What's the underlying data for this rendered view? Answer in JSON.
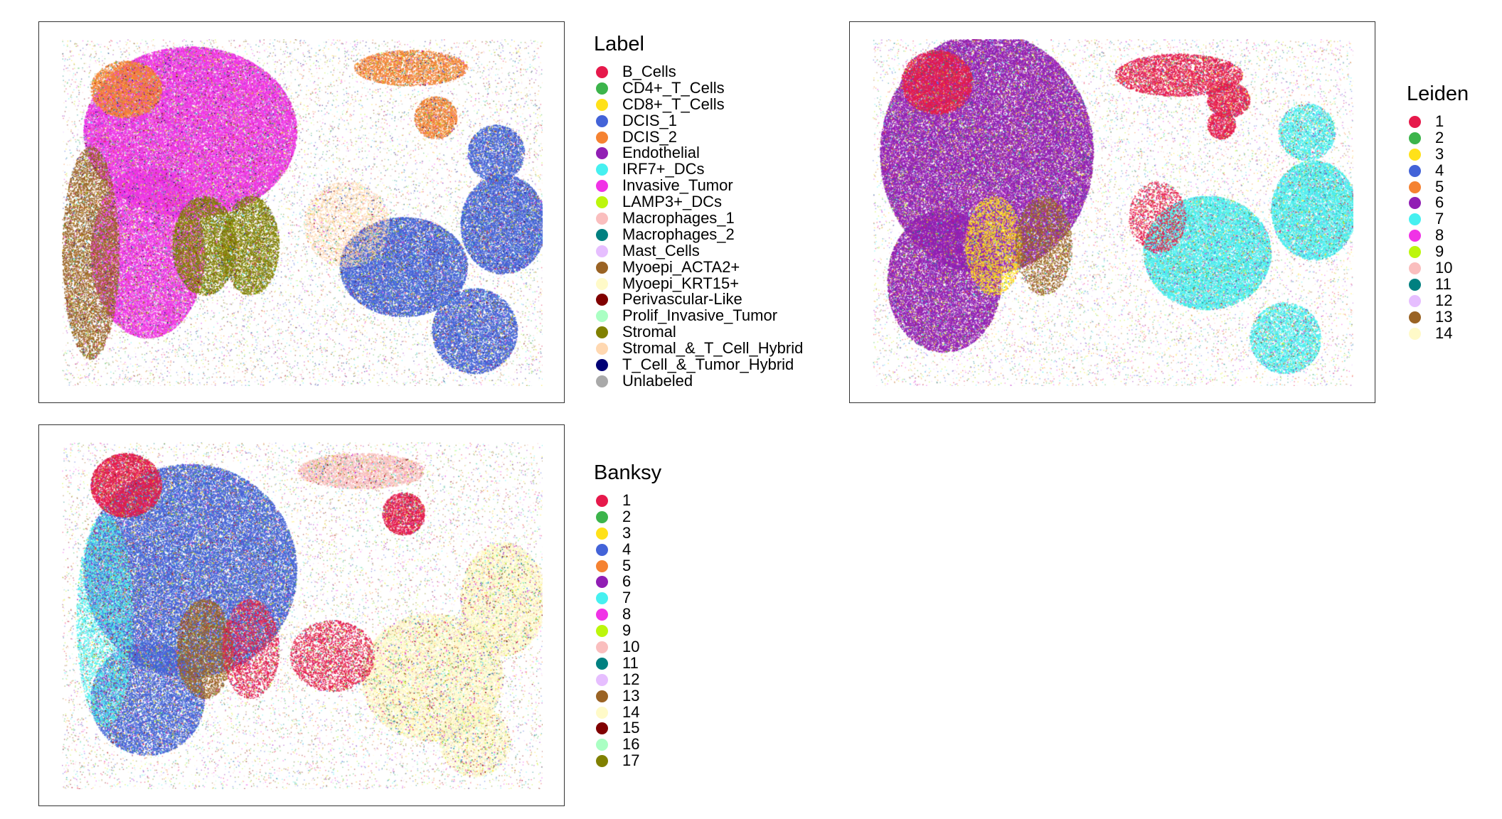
{
  "chart_data": [
    {
      "type": "scatter",
      "legend_title": "Label",
      "legend_position": "right",
      "grid": false,
      "categories": [
        {
          "name": "B_Cells",
          "color": "#E6194B"
        },
        {
          "name": "CD4+_T_Cells",
          "color": "#3CB44B"
        },
        {
          "name": "CD8+_T_Cells",
          "color": "#FFE119"
        },
        {
          "name": "DCIS_1",
          "color": "#4363D8"
        },
        {
          "name": "DCIS_2",
          "color": "#F58231"
        },
        {
          "name": "Endothelial",
          "color": "#911EB4"
        },
        {
          "name": "IRF7+_DCs",
          "color": "#46F0F0"
        },
        {
          "name": "Invasive_Tumor",
          "color": "#F032E6"
        },
        {
          "name": "LAMP3+_DCs",
          "color": "#BCF60C"
        },
        {
          "name": "Macrophages_1",
          "color": "#FABEBE"
        },
        {
          "name": "Macrophages_2",
          "color": "#008080"
        },
        {
          "name": "Mast_Cells",
          "color": "#E6BEFF"
        },
        {
          "name": "Myoepi_ACTA2+",
          "color": "#9A6324"
        },
        {
          "name": "Myoepi_KRT15+",
          "color": "#FFFAC8"
        },
        {
          "name": "Perivascular-Like",
          "color": "#800000"
        },
        {
          "name": "Prolif_Invasive_Tumor",
          "color": "#AAFFC3"
        },
        {
          "name": "Stromal",
          "color": "#808000"
        },
        {
          "name": "Stromal_&_T_Cell_Hybrid",
          "color": "#FFD8B1"
        },
        {
          "name": "T_Cell_&_Tumor_Hybrid",
          "color": "#000075"
        },
        {
          "name": "Unlabeled",
          "color": "#A9A9A9"
        }
      ]
    },
    {
      "type": "scatter",
      "legend_title": "Leiden",
      "legend_position": "right",
      "grid": false,
      "categories": [
        {
          "name": "1",
          "color": "#E6194B"
        },
        {
          "name": "2",
          "color": "#3CB44B"
        },
        {
          "name": "3",
          "color": "#FFE119"
        },
        {
          "name": "4",
          "color": "#4363D8"
        },
        {
          "name": "5",
          "color": "#F58231"
        },
        {
          "name": "6",
          "color": "#911EB4"
        },
        {
          "name": "7",
          "color": "#46F0F0"
        },
        {
          "name": "8",
          "color": "#F032E6"
        },
        {
          "name": "9",
          "color": "#BCF60C"
        },
        {
          "name": "10",
          "color": "#FABEBE"
        },
        {
          "name": "11",
          "color": "#008080"
        },
        {
          "name": "12",
          "color": "#E6BEFF"
        },
        {
          "name": "13",
          "color": "#9A6324"
        },
        {
          "name": "14",
          "color": "#FFFAC8"
        }
      ]
    },
    {
      "type": "scatter",
      "legend_title": "Banksy",
      "legend_position": "right",
      "grid": false,
      "categories": [
        {
          "name": "1",
          "color": "#E6194B"
        },
        {
          "name": "2",
          "color": "#3CB44B"
        },
        {
          "name": "3",
          "color": "#FFE119"
        },
        {
          "name": "4",
          "color": "#4363D8"
        },
        {
          "name": "5",
          "color": "#F58231"
        },
        {
          "name": "6",
          "color": "#911EB4"
        },
        {
          "name": "7",
          "color": "#46F0F0"
        },
        {
          "name": "8",
          "color": "#F032E6"
        },
        {
          "name": "9",
          "color": "#BCF60C"
        },
        {
          "name": "10",
          "color": "#FABEBE"
        },
        {
          "name": "11",
          "color": "#008080"
        },
        {
          "name": "12",
          "color": "#E6BEFF"
        },
        {
          "name": "13",
          "color": "#9A6324"
        },
        {
          "name": "14",
          "color": "#FFFAC8"
        },
        {
          "name": "15",
          "color": "#800000"
        },
        {
          "name": "16",
          "color": "#AAFFC3"
        },
        {
          "name": "17",
          "color": "#808000"
        }
      ]
    }
  ]
}
